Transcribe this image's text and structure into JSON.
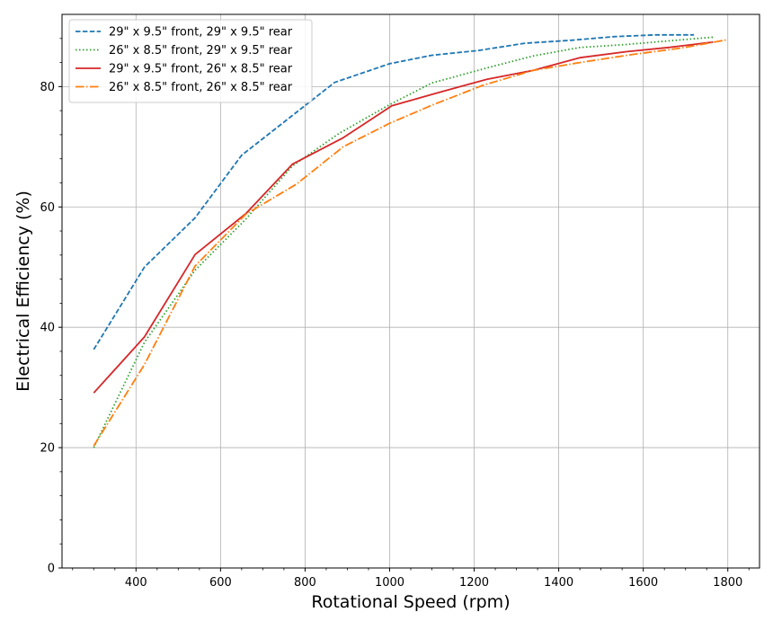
{
  "chart_data": {
    "type": "line",
    "title": "",
    "xlabel": "Rotational Speed (rpm)",
    "ylabel": "Electrical Efficiency (%)",
    "xlim": [
      225,
      1875
    ],
    "ylim": [
      0,
      92
    ],
    "xticks": [
      400,
      600,
      800,
      1000,
      1200,
      1400,
      1600,
      1800
    ],
    "yticks": [
      0,
      20,
      40,
      60,
      80
    ],
    "grid": true,
    "legend_position": "top-left",
    "series": [
      {
        "name": "29\" x 9.5\" front, 29\" x 9.5\" rear",
        "color": "#1f77b4",
        "style": "dashed",
        "x": [
          300,
          420,
          540,
          650,
          770,
          870,
          1000,
          1100,
          1210,
          1320,
          1430,
          1530,
          1630,
          1720
        ],
        "y": [
          36.3,
          50.0,
          58.2,
          68.6,
          75.2,
          80.7,
          83.8,
          85.2,
          86.0,
          87.2,
          87.7,
          88.3,
          88.6,
          88.6
        ]
      },
      {
        "name": "26\" x 8.5\" front, 29\" x 9.5\" rear",
        "color": "#2ca02c",
        "style": "dotted",
        "x": [
          300,
          420,
          540,
          660,
          770,
          880,
          1000,
          1100,
          1230,
          1340,
          1450,
          1560,
          1660,
          1765
        ],
        "y": [
          20.0,
          37.5,
          49.5,
          58.0,
          66.8,
          72.2,
          77.0,
          80.6,
          83.1,
          85.1,
          86.5,
          87.0,
          87.6,
          88.2
        ]
      },
      {
        "name": "29\" x 9.5\" front, 26\" x 8.5\" rear",
        "color": "#d62728",
        "style": "solid",
        "x": [
          300,
          420,
          540,
          660,
          770,
          890,
          1005,
          1110,
          1230,
          1340,
          1450,
          1560,
          1660,
          1765
        ],
        "y": [
          29.1,
          38.4,
          52.1,
          58.9,
          67.1,
          71.5,
          76.8,
          78.9,
          81.2,
          82.7,
          84.8,
          85.8,
          86.5,
          87.4
        ]
      },
      {
        "name": "26\" x 8.5\" front, 26\" x 8.5\" rear",
        "color": "#ff7f0e",
        "style": "dashdot",
        "x": [
          300,
          420,
          540,
          660,
          780,
          890,
          1000,
          1100,
          1220,
          1340,
          1450,
          1570,
          1690,
          1800
        ],
        "y": [
          20.3,
          33.8,
          50.2,
          58.8,
          63.8,
          70.0,
          73.9,
          76.9,
          80.2,
          82.7,
          84.0,
          85.3,
          86.4,
          87.8
        ]
      }
    ]
  }
}
